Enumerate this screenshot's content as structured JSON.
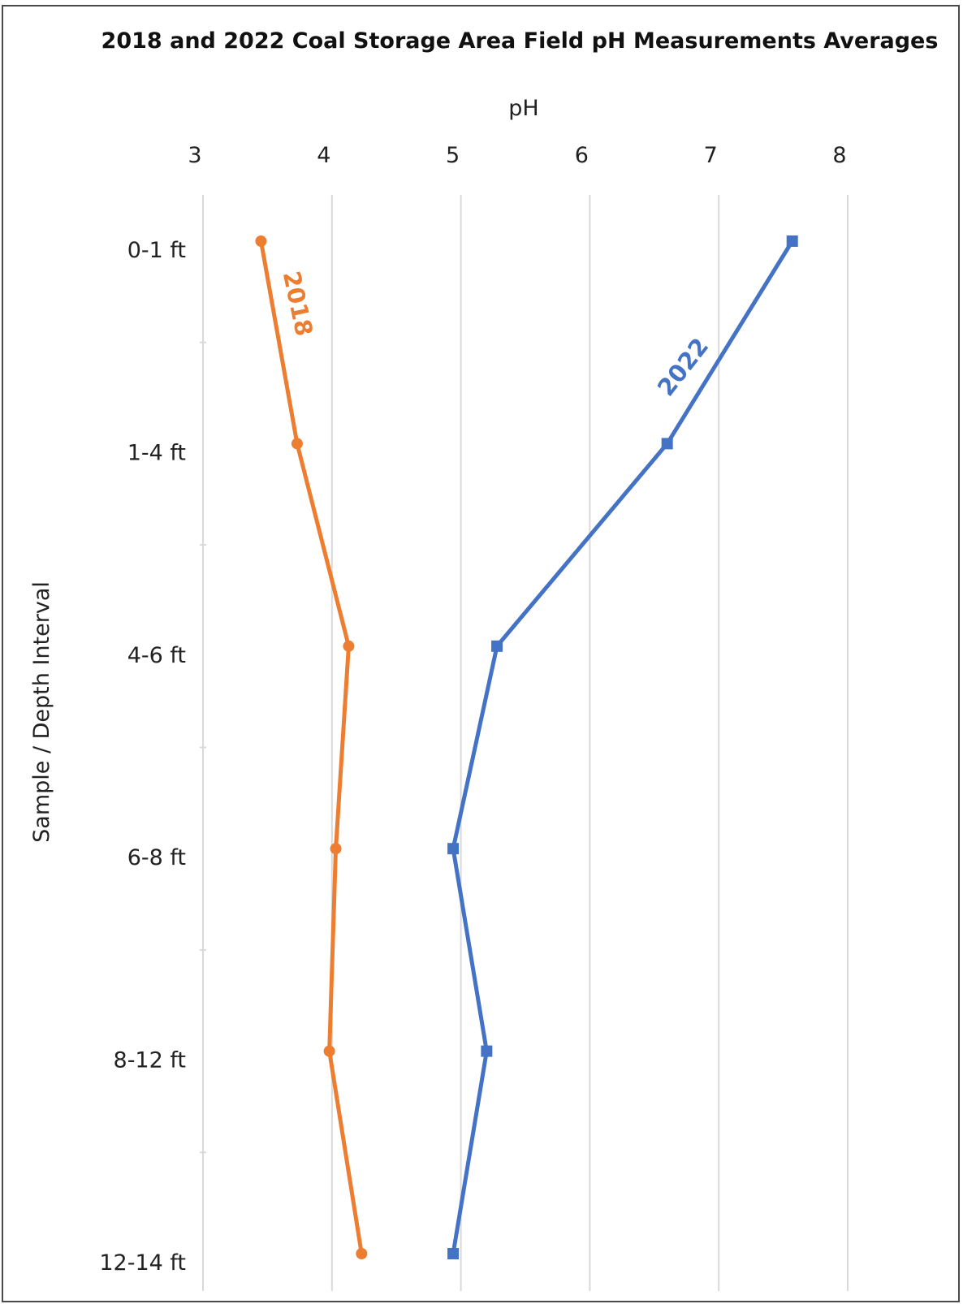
{
  "chart_data": {
    "type": "line",
    "title": "2018 and 2022 Coal Storage Area Field pH Measurements Averages",
    "xlabel": "pH",
    "ylabel": "Sample / Depth Interval",
    "x_axis_position": "top",
    "xlim": [
      3,
      8
    ],
    "x_ticks": [
      "3",
      "4",
      "5",
      "6",
      "7",
      "8"
    ],
    "categories": [
      "0-1 ft",
      "1-4 ft",
      "4-6 ft",
      "6-8 ft",
      "8-12 ft",
      "12-14 ft"
    ],
    "grid": "vertical",
    "legend": "inline labels on lines",
    "series": [
      {
        "name": "2018",
        "color": "#ED7D31",
        "marker": "circle",
        "values": [
          3.45,
          3.73,
          4.13,
          4.03,
          3.98,
          4.23
        ]
      },
      {
        "name": "2022",
        "color": "#4472C4",
        "marker": "square",
        "values": [
          7.57,
          6.6,
          5.28,
          4.94,
          5.2,
          4.94
        ]
      }
    ]
  }
}
